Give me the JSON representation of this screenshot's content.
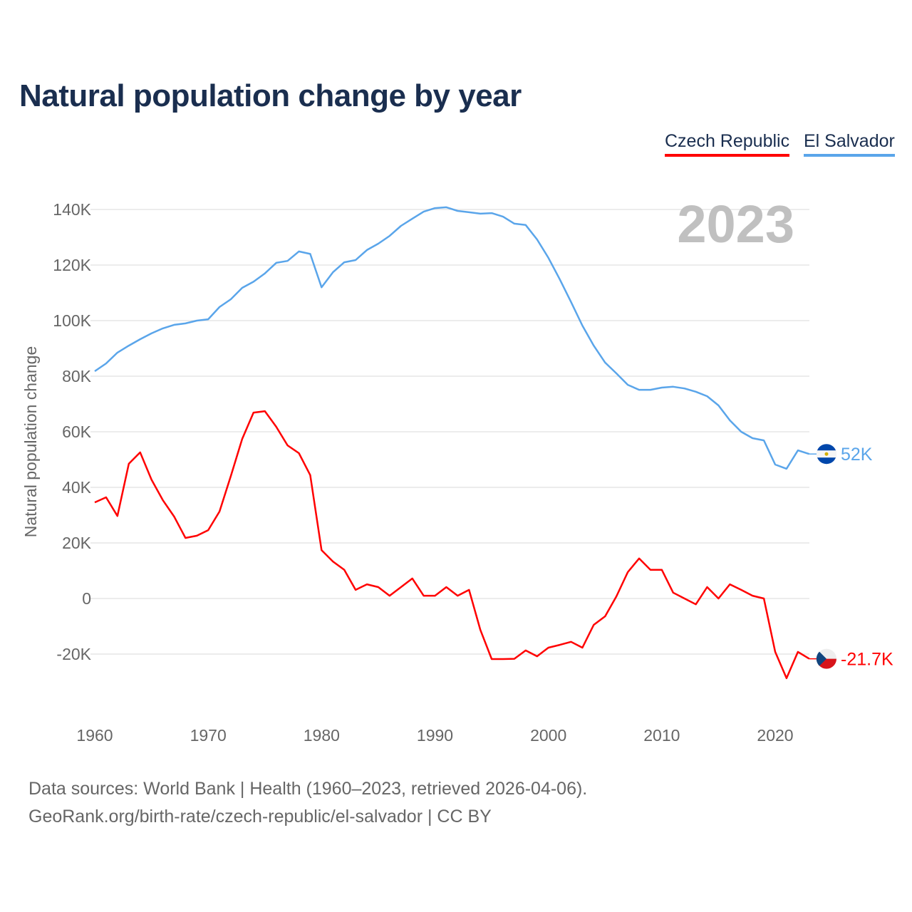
{
  "chart_data": {
    "type": "line",
    "title": "Natural population change by year",
    "xlabel": "",
    "ylabel": "Natural population change",
    "xlim": [
      1960,
      2023
    ],
    "ylim": [
      -38000,
      150000
    ],
    "x_ticks": [
      1960,
      1970,
      1980,
      1990,
      2000,
      2010,
      2020
    ],
    "x_tick_labels": [
      "1960",
      "1970",
      "1980",
      "1990",
      "2000",
      "2010",
      "2020"
    ],
    "y_ticks": [
      -20000,
      0,
      20000,
      40000,
      60000,
      80000,
      100000,
      120000,
      140000
    ],
    "y_tick_labels": [
      "-20K",
      "0",
      "20K",
      "40K",
      "60K",
      "80K",
      "100K",
      "120K",
      "140K"
    ],
    "grid": true,
    "legend_position": "top-right",
    "year_label": "2023",
    "x_start": 1960,
    "series": [
      {
        "name": "Czech Republic",
        "color": "#ff0000",
        "end_label": "-21.7K",
        "flag": "czech-flag",
        "values": [
          34600,
          36400,
          29700,
          48500,
          52600,
          42800,
          35400,
          29500,
          21800,
          22600,
          24600,
          31300,
          44100,
          57400,
          66900,
          67400,
          61800,
          55100,
          52300,
          44400,
          17400,
          13300,
          10300,
          3100,
          5100,
          4100,
          1000,
          4100,
          7200,
          1000,
          1000,
          4100,
          1000,
          3100,
          -11300,
          -21800,
          -21800,
          -21700,
          -18700,
          -20800,
          -17700,
          -16700,
          -15600,
          -17700,
          -9500,
          -6400,
          800,
          9500,
          14400,
          10300,
          10300,
          2100,
          0,
          -2100,
          4100,
          0,
          5100,
          3100,
          1000,
          0,
          -19200,
          -28700,
          -19200,
          -21700
        ]
      },
      {
        "name": "El Salvador",
        "color": "#5aa5ea",
        "end_label": "52K",
        "flag": "el-salvador-flag",
        "values": [
          81800,
          84600,
          88500,
          91000,
          93300,
          95400,
          97200,
          98500,
          99000,
          100000,
          100500,
          104900,
          107700,
          111800,
          114000,
          117000,
          120800,
          121500,
          124900,
          124000,
          112000,
          117400,
          121000,
          121800,
          125400,
          127700,
          130500,
          134100,
          136700,
          139200,
          140500,
          140800,
          139500,
          139000,
          138500,
          138700,
          137400,
          134900,
          134400,
          129200,
          122600,
          114900,
          106700,
          98200,
          91000,
          84900,
          81000,
          76900,
          75100,
          75100,
          75900,
          76200,
          75600,
          74400,
          72800,
          69500,
          64100,
          60000,
          57700,
          56900,
          48200,
          46700,
          53300,
          52000
        ]
      }
    ]
  },
  "footer": {
    "line1": "Data sources: World Bank | Health (1960–2023, retrieved 2026-04-06).",
    "line2": "GeoRank.org/birth-rate/czech-republic/el-salvador | CC BY"
  }
}
